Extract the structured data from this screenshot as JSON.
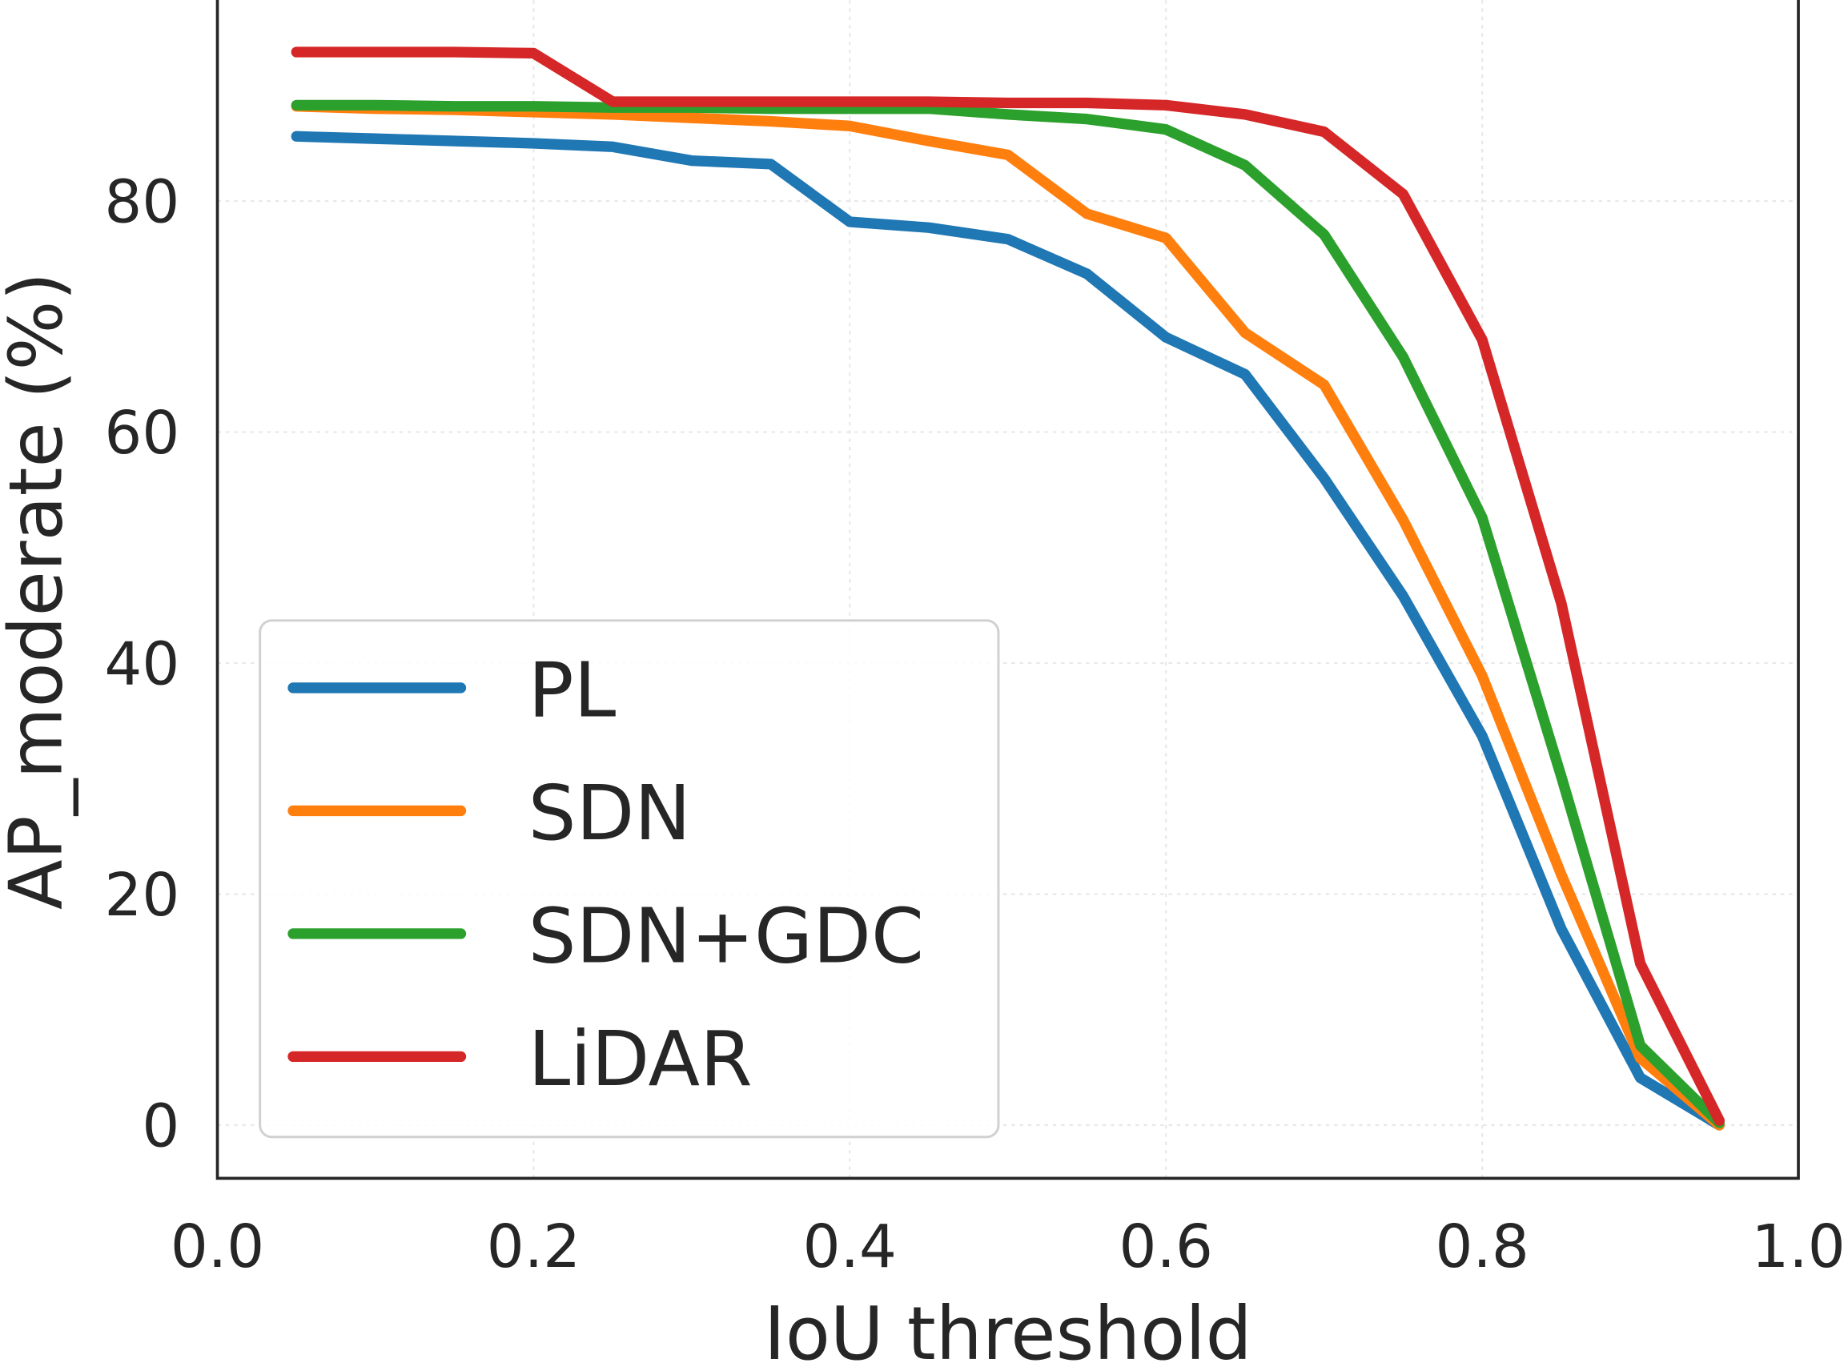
{
  "chart_data": {
    "type": "line",
    "title": "",
    "xlabel": "IoU threshold",
    "ylabel": "AP_moderate (%)",
    "xlim": [
      0.0,
      1.0
    ],
    "ylim": [
      -4.6,
      97.4
    ],
    "xticks": [
      "0.0",
      "0.2",
      "0.4",
      "0.6",
      "0.8",
      "1.0"
    ],
    "yticks": [
      "0",
      "20",
      "40",
      "60",
      "80"
    ],
    "grid": true,
    "legend_position": "lower-left",
    "x": [
      0.05,
      0.1,
      0.15,
      0.2,
      0.25,
      0.3,
      0.35,
      0.4,
      0.45,
      0.5,
      0.55,
      0.6,
      0.65,
      0.7,
      0.75,
      0.8,
      0.85,
      0.9,
      0.95
    ],
    "series": [
      {
        "name": "PL",
        "color": "#1f77b4",
        "values": [
          85.6,
          85.4,
          85.2,
          85.0,
          84.7,
          83.5,
          83.2,
          78.2,
          77.7,
          76.7,
          73.7,
          68.2,
          65.0,
          56.0,
          45.8,
          33.7,
          17.0,
          4.1,
          0.0
        ]
      },
      {
        "name": "SDN",
        "color": "#ff7f0e",
        "values": [
          88.2,
          88.0,
          87.9,
          87.7,
          87.5,
          87.2,
          86.9,
          86.5,
          85.2,
          84.0,
          78.9,
          76.8,
          68.6,
          64.1,
          52.4,
          38.9,
          21.7,
          5.8,
          0.0
        ]
      },
      {
        "name": "SDN+GDC",
        "color": "#2ca02c",
        "values": [
          88.3,
          88.3,
          88.2,
          88.2,
          88.1,
          88.1,
          88.0,
          88.0,
          88.0,
          87.5,
          87.1,
          86.2,
          83.1,
          77.1,
          66.5,
          52.6,
          30.2,
          6.9,
          0.2
        ]
      },
      {
        "name": "LiDAR",
        "color": "#d62728",
        "values": [
          92.9,
          92.9,
          92.9,
          92.8,
          88.6,
          88.6,
          88.6,
          88.6,
          88.6,
          88.5,
          88.5,
          88.3,
          87.5,
          86.0,
          80.6,
          68.0,
          45.2,
          14.0,
          0.4
        ]
      }
    ]
  }
}
